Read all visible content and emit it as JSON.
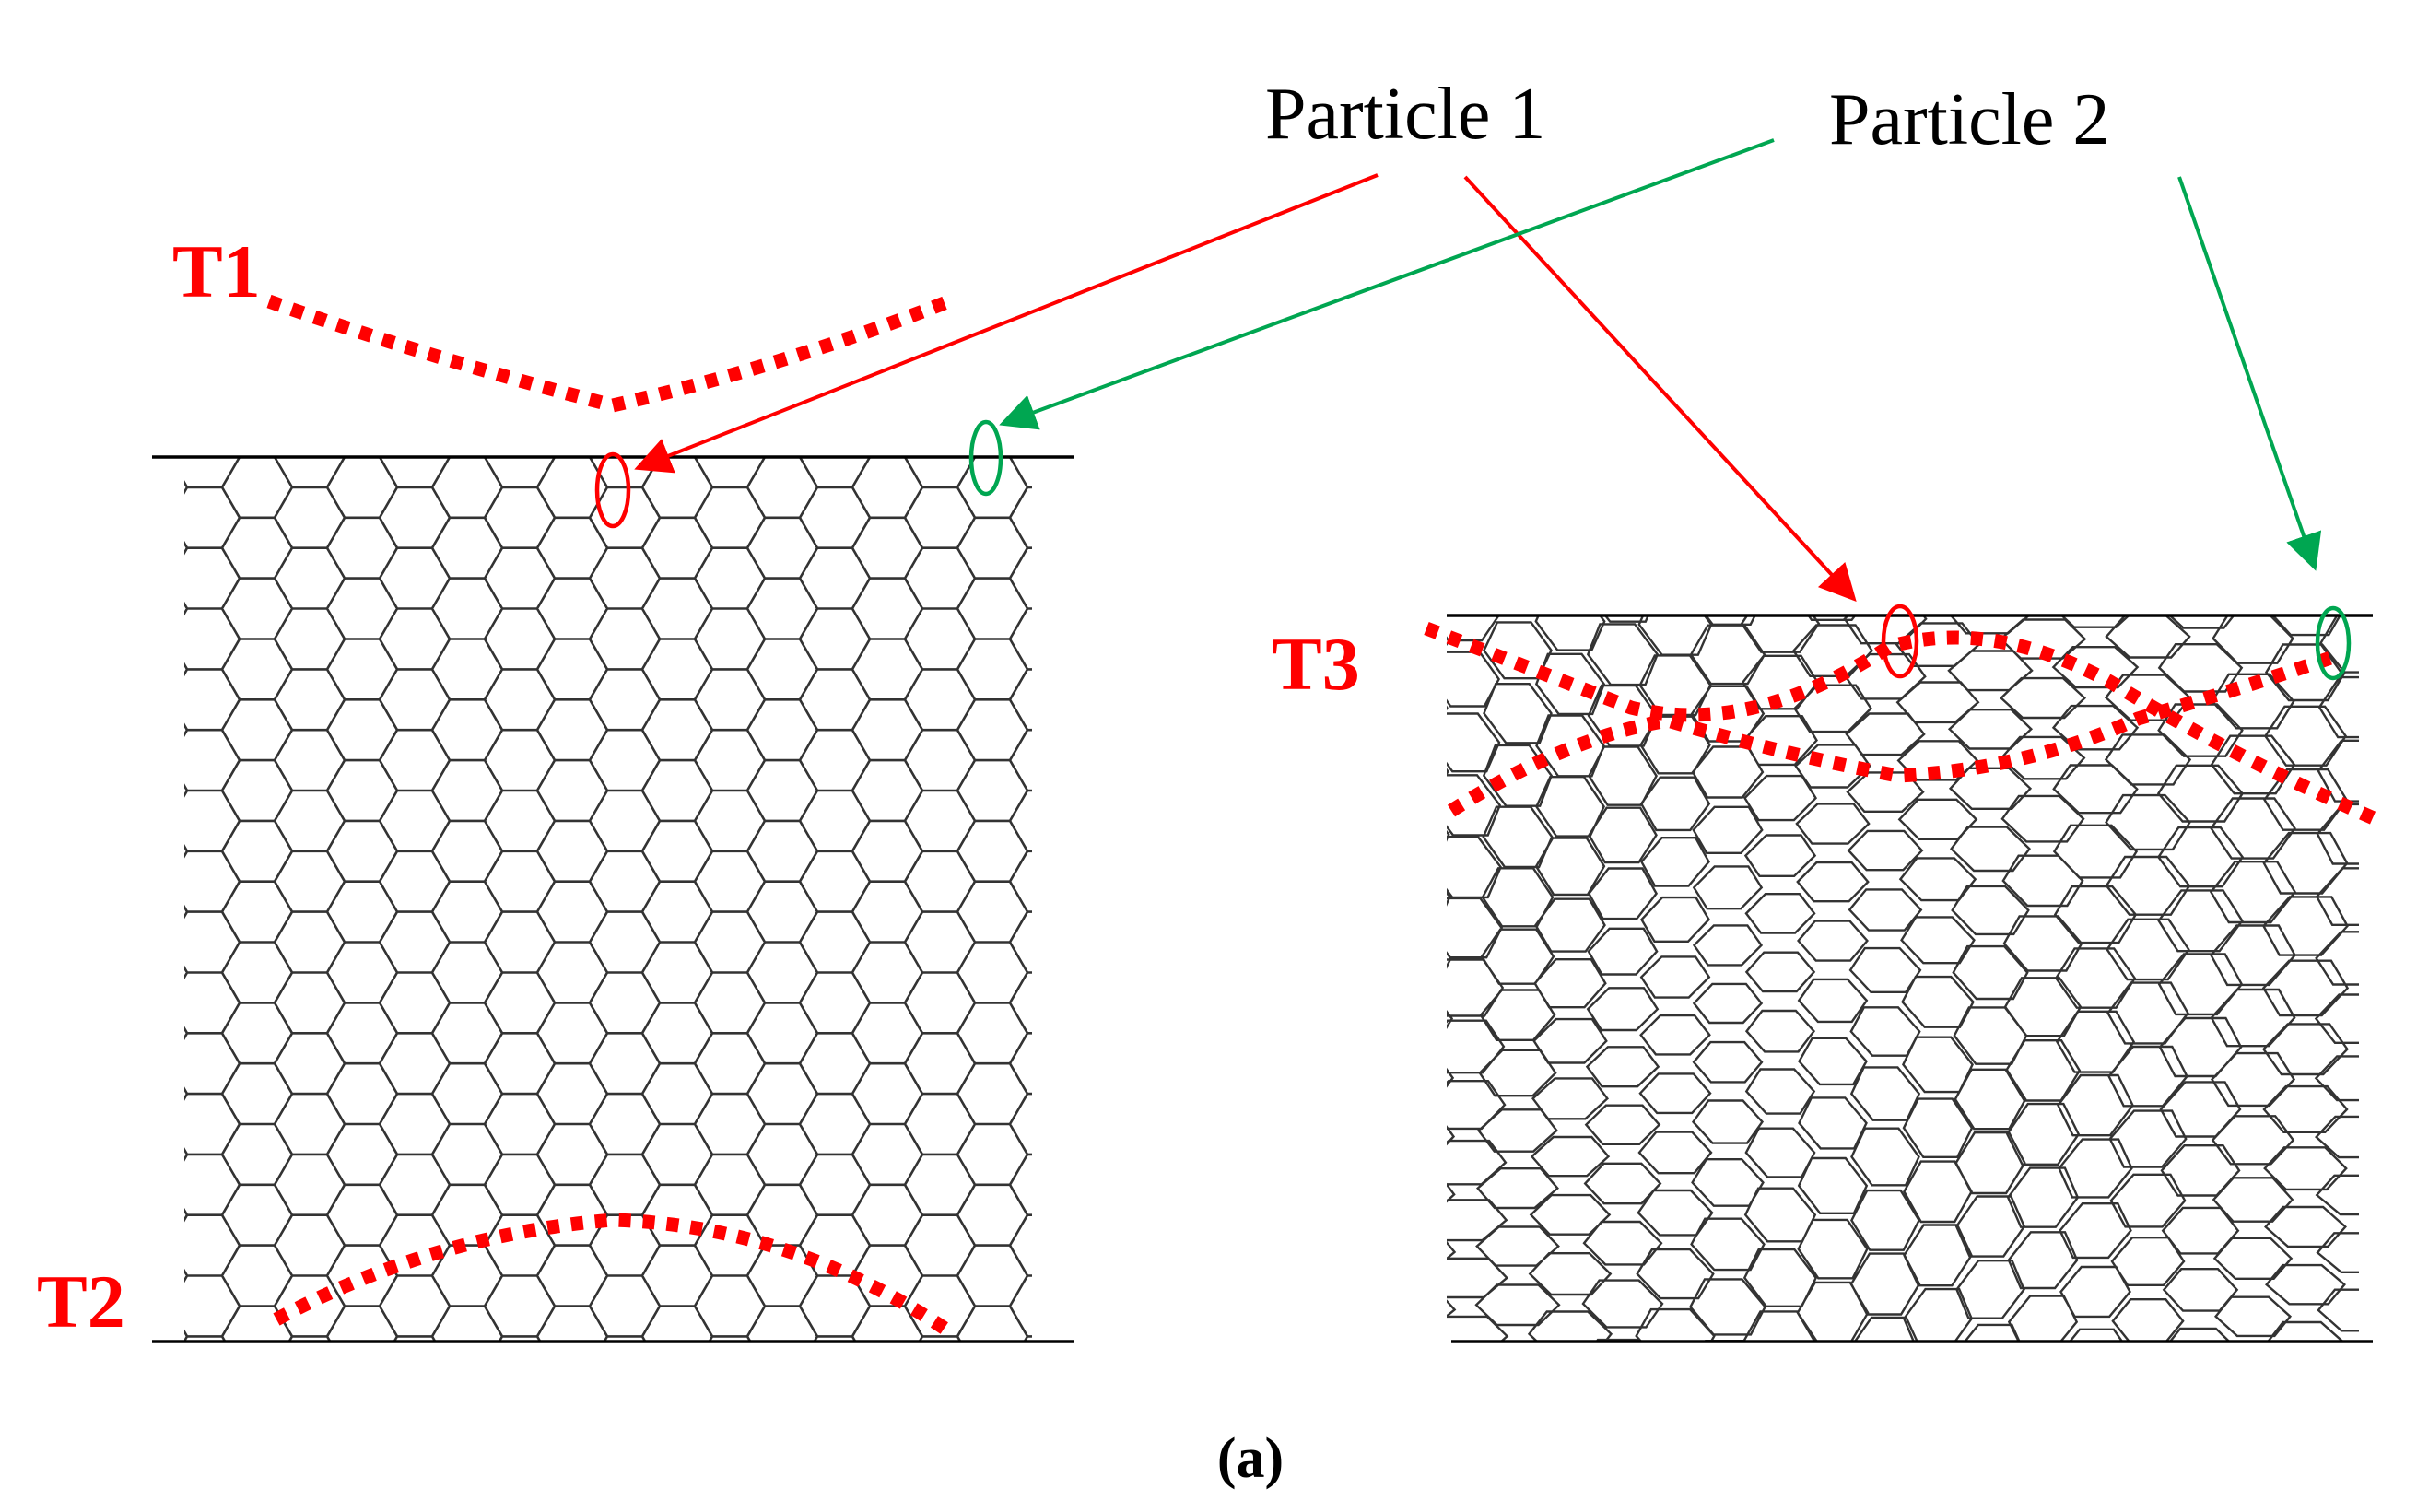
{
  "labels": {
    "particle1": "Particle 1",
    "particle2": "Particle 2",
    "t1": "T1",
    "t2": "T2",
    "t3": "T3",
    "caption": "(a)"
  },
  "colors": {
    "particle1": "#ff0000",
    "particle2": "#00a651",
    "trajectory": "#ff0000",
    "mesh": "#333333"
  },
  "panels": [
    {
      "name": "undeformed-mesh"
    },
    {
      "name": "deformed-mesh"
    }
  ]
}
